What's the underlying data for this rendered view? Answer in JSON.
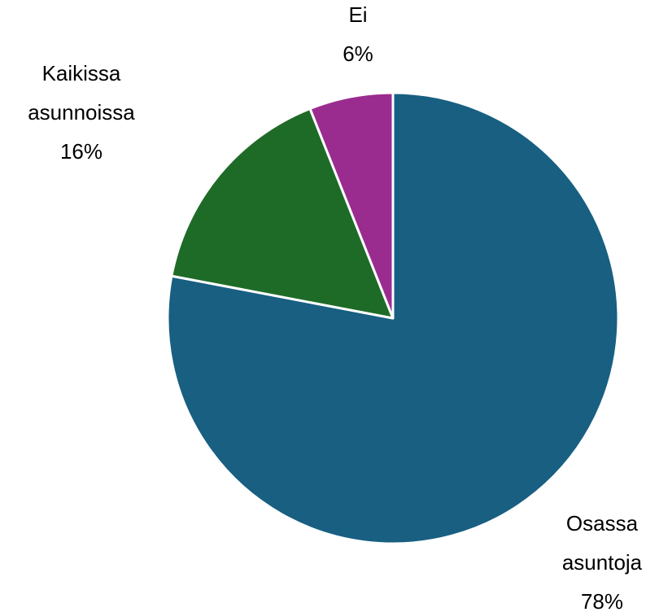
{
  "chart_data": {
    "type": "pie",
    "categories": [
      [
        "Osassa",
        "asuntoja"
      ],
      [
        "Kaikissa",
        "asunnoissa"
      ],
      [
        "Ei"
      ]
    ],
    "values": [
      78,
      16,
      6
    ],
    "value_labels": [
      "78%",
      "16%",
      "6%"
    ],
    "colors": [
      "#185f82",
      "#1e6b28",
      "#9b2c8f"
    ]
  }
}
